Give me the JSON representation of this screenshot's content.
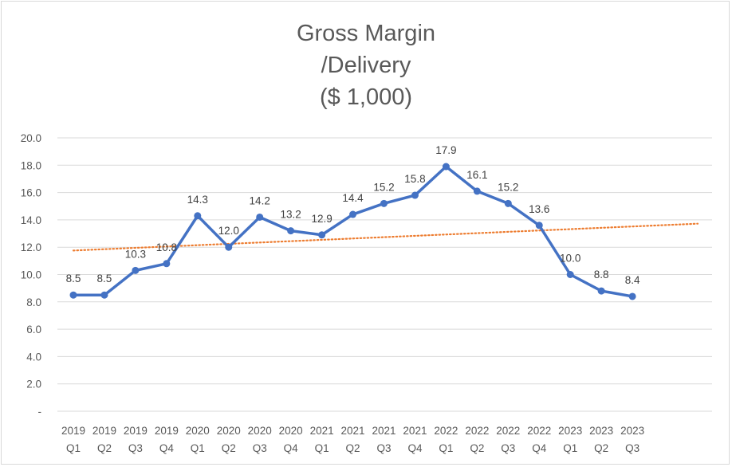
{
  "chart_data": {
    "type": "line",
    "title_lines": [
      "Gross Margin",
      "/Delivery",
      "($ 1,000)"
    ],
    "categories": [
      [
        "2019",
        "Q1"
      ],
      [
        "2019",
        "Q2"
      ],
      [
        "2019",
        "Q3"
      ],
      [
        "2019",
        "Q4"
      ],
      [
        "2020",
        "Q1"
      ],
      [
        "2020",
        "Q2"
      ],
      [
        "2020",
        "Q3"
      ],
      [
        "2020",
        "Q4"
      ],
      [
        "2021",
        "Q1"
      ],
      [
        "2021",
        "Q2"
      ],
      [
        "2021",
        "Q3"
      ],
      [
        "2021",
        "Q4"
      ],
      [
        "2022",
        "Q1"
      ],
      [
        "2022",
        "Q2"
      ],
      [
        "2022",
        "Q3"
      ],
      [
        "2022",
        "Q4"
      ],
      [
        "2023",
        "Q1"
      ],
      [
        "2023",
        "Q2"
      ],
      [
        "2023",
        "Q3"
      ]
    ],
    "values": [
      8.5,
      8.5,
      10.3,
      10.8,
      14.3,
      12.0,
      14.2,
      13.2,
      12.9,
      14.4,
      15.2,
      15.8,
      17.9,
      16.1,
      15.2,
      13.6,
      10.0,
      8.8,
      8.4
    ],
    "data_labels": [
      "8.5",
      "8.5",
      "10.3",
      "10.8",
      "14.3",
      "12.0",
      "14.2",
      "13.2",
      "12.9",
      "14.4",
      "15.2",
      "15.8",
      "17.9",
      "16.1",
      "15.2",
      "13.6",
      "10.0",
      "8.8",
      "8.4"
    ],
    "y_ticks": [
      "-",
      "2.0",
      "4.0",
      "6.0",
      "8.0",
      "10.0",
      "12.0",
      "14.0",
      "16.0",
      "18.0",
      "20.0"
    ],
    "ylim": [
      0,
      20
    ],
    "grid": true,
    "legend": "none",
    "trendline": {
      "type": "linear",
      "style": "dotted",
      "color": "#ed7d31"
    },
    "colors": {
      "series": "#4472c4",
      "trend": "#ed7d31",
      "grid": "#d9d9d9",
      "text": "#595959"
    }
  }
}
